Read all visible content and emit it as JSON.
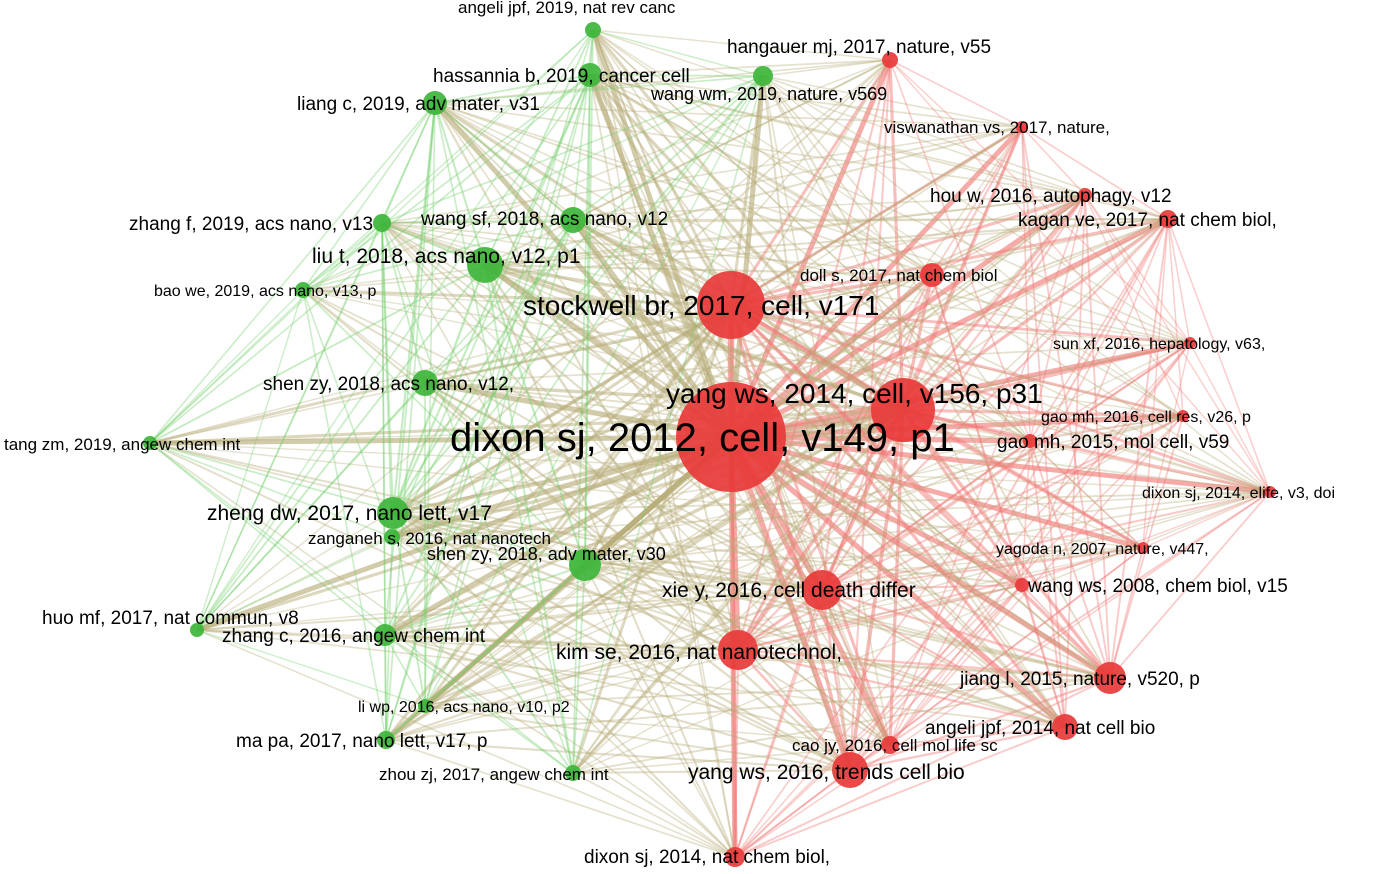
{
  "network": {
    "colors": {
      "green_cluster": "#3db53a",
      "red_cluster": "#e83a3a",
      "green_edge": "#6fce66",
      "red_edge": "#f07a76",
      "mixed_edge": "#b8ad79",
      "label": "#000000",
      "background": "#ffffff"
    },
    "nodes": [
      {
        "id": "n1",
        "label": "dixon sj, 2012, cell, v149, p1",
        "cluster": "red",
        "weight": 100
      },
      {
        "id": "n2",
        "label": "yang ws, 2014, cell, v156, p31",
        "cluster": "red",
        "weight": 52
      },
      {
        "id": "n3",
        "label": "stockwell br, 2017, cell, v171",
        "cluster": "red",
        "weight": 48
      },
      {
        "id": "n4",
        "label": "xie y, 2016, cell death differ",
        "cluster": "red",
        "weight": 26
      },
      {
        "id": "n5",
        "label": "kim se, 2016, nat nanotechnol,",
        "cluster": "red",
        "weight": 26
      },
      {
        "id": "n6",
        "label": "yang ws, 2016, trends cell bio",
        "cluster": "red",
        "weight": 24
      },
      {
        "id": "n7",
        "label": "jiang l, 2015, nature, v520, p",
        "cluster": "red",
        "weight": 20
      },
      {
        "id": "n8",
        "label": "angeli jpf, 2014, nat cell bio",
        "cluster": "red",
        "weight": 18
      },
      {
        "id": "n9",
        "label": "cao jy, 2016, cell mol life sc",
        "cluster": "red",
        "weight": 14
      },
      {
        "id": "n10",
        "label": "dixon sj, 2014, nat chem biol,",
        "cluster": "red",
        "weight": 14
      },
      {
        "id": "n11",
        "label": "doll s, 2017, nat chem biol",
        "cluster": "red",
        "weight": 16
      },
      {
        "id": "n12",
        "label": "kagan ve, 2017, nat chem biol,",
        "cluster": "red",
        "weight": 14
      },
      {
        "id": "n13",
        "label": "hou w, 2016, autophagy, v12",
        "cluster": "red",
        "weight": 12
      },
      {
        "id": "n14",
        "label": "viswanathan vs, 2017, nature,",
        "cluster": "red",
        "weight": 12
      },
      {
        "id": "n15",
        "label": "hangauer mj, 2017, nature, v55",
        "cluster": "red",
        "weight": 12
      },
      {
        "id": "n16",
        "label": "sun xf, 2016, hepatology, v63,",
        "cluster": "red",
        "weight": 10
      },
      {
        "id": "n17",
        "label": "gao mh, 2016, cell res, v26, p",
        "cluster": "red",
        "weight": 10
      },
      {
        "id": "n18",
        "label": "gao mh, 2015, mol cell, v59",
        "cluster": "red",
        "weight": 14
      },
      {
        "id": "n19",
        "label": "dixon sj, 2014, elife, v3, doi",
        "cluster": "red",
        "weight": 10
      },
      {
        "id": "n20",
        "label": "yagoda n, 2007, nature, v447,",
        "cluster": "red",
        "weight": 10
      },
      {
        "id": "n21",
        "label": "wang ws, 2008, chem biol, v15",
        "cluster": "red",
        "weight": 12
      },
      {
        "id": "n22",
        "label": "liu t, 2018, acs nano, v12, p1",
        "cluster": "green",
        "weight": 22
      },
      {
        "id": "n23",
        "label": "wang sf, 2018, acs nano, v12",
        "cluster": "green",
        "weight": 16
      },
      {
        "id": "n24",
        "label": "zhang f, 2019, acs nano, v13",
        "cluster": "green",
        "weight": 12
      },
      {
        "id": "n25",
        "label": "bao we, 2019, acs nano, v13, p",
        "cluster": "green",
        "weight": 10
      },
      {
        "id": "n26",
        "label": "shen zy, 2018, acs nano, v12,",
        "cluster": "green",
        "weight": 18
      },
      {
        "id": "n27",
        "label": "tang zm, 2019, angew chem int",
        "cluster": "green",
        "weight": 10
      },
      {
        "id": "n28",
        "label": "zheng dw, 2017, nano lett, v17",
        "cluster": "green",
        "weight": 22
      },
      {
        "id": "n29",
        "label": "zanganeh s, 2016, nat nanotech",
        "cluster": "green",
        "weight": 14
      },
      {
        "id": "n30",
        "label": "shen zy, 2018, adv mater, v30",
        "cluster": "green",
        "weight": 18
      },
      {
        "id": "n31",
        "label": "huo mf, 2017, nat commun, v8",
        "cluster": "green",
        "weight": 10
      },
      {
        "id": "n32",
        "label": "zhang c, 2016, angew chem int",
        "cluster": "green",
        "weight": 16
      },
      {
        "id": "n33",
        "label": "li wp, 2016, acs nano, v10, p2",
        "cluster": "green",
        "weight": 10
      },
      {
        "id": "n34",
        "label": "ma pa, 2017, nano lett, v17, p",
        "cluster": "green",
        "weight": 14
      },
      {
        "id": "n35",
        "label": "zhou zj, 2017, angew chem int",
        "cluster": "green",
        "weight": 12
      },
      {
        "id": "n36",
        "label": "angeli jpf, 2019, nat rev canc",
        "cluster": "green",
        "weight": 10
      },
      {
        "id": "n37",
        "label": "hassannia b, 2019, cancer cell",
        "cluster": "green",
        "weight": 16
      },
      {
        "id": "n38",
        "label": "liang c, 2019, adv mater, v31",
        "cluster": "green",
        "weight": 14
      },
      {
        "id": "n39",
        "label": "wang wm, 2019, nature, v569",
        "cluster": "green",
        "weight": 12
      }
    ]
  }
}
